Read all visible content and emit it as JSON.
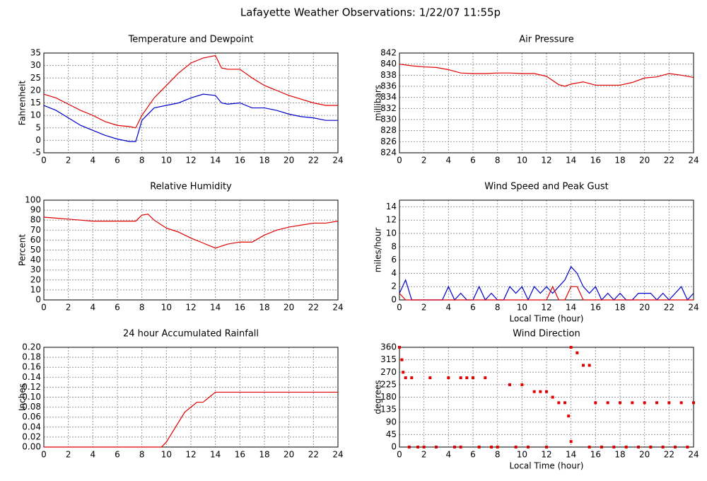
{
  "title": "Lafayette Weather Observations: 1/22/07 11:55p",
  "chart_data": [
    {
      "type": "line",
      "title": "Temperature and Dewpoint",
      "y_label": "Fahrenheit",
      "grid": true,
      "xlim": [
        0,
        24
      ],
      "xticks": [
        0,
        2,
        4,
        6,
        8,
        10,
        12,
        14,
        16,
        18,
        20,
        22,
        24
      ],
      "ylim": [
        -5,
        35
      ],
      "yticks": [
        -5,
        0,
        5,
        10,
        15,
        20,
        25,
        30,
        35
      ],
      "x": [
        0,
        1,
        2,
        3,
        4,
        5,
        6,
        7,
        7.5,
        8,
        9,
        10,
        11,
        12,
        13,
        14,
        14.5,
        15,
        16,
        17,
        18,
        19,
        20,
        21,
        22,
        23,
        24
      ],
      "series": [
        {
          "color": "#e00000",
          "values": [
            18.5,
            17,
            14.5,
            12,
            10,
            7.5,
            6,
            5.5,
            5,
            10,
            17,
            22,
            27,
            31,
            33,
            34,
            29,
            28.5,
            28.5,
            25,
            22,
            20,
            18,
            16.5,
            15,
            14,
            14
          ]
        },
        {
          "color": "#0000c8",
          "values": [
            14,
            12,
            9,
            6,
            4,
            2,
            0.5,
            -0.5,
            -0.5,
            8,
            13,
            14,
            15,
            17,
            18.5,
            18,
            15,
            14.5,
            15,
            13,
            13,
            12,
            10.5,
            9.5,
            9,
            8,
            8
          ]
        }
      ]
    },
    {
      "type": "line",
      "title": "Air Pressure",
      "y_label": "millibars",
      "grid": true,
      "xlim": [
        0,
        24
      ],
      "xticks": [
        0,
        2,
        4,
        6,
        8,
        10,
        12,
        14,
        16,
        18,
        20,
        22,
        24
      ],
      "ylim": [
        824,
        842
      ],
      "yticks": [
        824,
        826,
        828,
        830,
        832,
        834,
        836,
        838,
        840,
        842
      ],
      "x": [
        0,
        1,
        2,
        3,
        4,
        5,
        6,
        7,
        8,
        9,
        10,
        11,
        12,
        13,
        13.5,
        14,
        15,
        16,
        17,
        18,
        19,
        20,
        21,
        22,
        23,
        24
      ],
      "series": [
        {
          "color": "#e00000",
          "values": [
            840,
            839.7,
            839.5,
            839.4,
            839,
            838.4,
            838.3,
            838.3,
            838.4,
            838.4,
            838.3,
            838.3,
            837.8,
            836.3,
            836,
            836.4,
            836.8,
            836.2,
            836.2,
            836.2,
            836.7,
            837.5,
            837.7,
            838.3,
            838,
            837.6
          ]
        }
      ]
    },
    {
      "type": "line",
      "title": "Relative Humidity",
      "y_label": "Percent",
      "grid": true,
      "xlim": [
        0,
        24
      ],
      "xticks": [
        0,
        2,
        4,
        6,
        8,
        10,
        12,
        14,
        16,
        18,
        20,
        22,
        24
      ],
      "ylim": [
        0,
        100
      ],
      "yticks": [
        0,
        10,
        20,
        30,
        40,
        50,
        60,
        70,
        80,
        90,
        100
      ],
      "x": [
        0,
        1,
        2,
        3,
        4,
        5,
        6,
        7,
        7.5,
        8,
        8.5,
        9,
        10,
        11,
        12,
        13,
        14,
        15,
        16,
        17,
        18,
        19,
        20,
        21,
        22,
        23,
        24
      ],
      "series": [
        {
          "color": "#e00000",
          "values": [
            83,
            82,
            81,
            80,
            79,
            79,
            79,
            79,
            79,
            85,
            86,
            80,
            72,
            68,
            62,
            57,
            52,
            56,
            58,
            58,
            65,
            70,
            73,
            75,
            77,
            77,
            79
          ]
        }
      ]
    },
    {
      "type": "line",
      "title": "Wind Speed and Peak Gust",
      "y_label": "miles/hour",
      "x_label": "Local Time (hour)",
      "grid": true,
      "xlim": [
        0,
        24
      ],
      "xticks": [
        0,
        2,
        4,
        6,
        8,
        10,
        12,
        14,
        16,
        18,
        20,
        22,
        24
      ],
      "ylim": [
        0,
        15
      ],
      "yticks": [
        0,
        2,
        4,
        6,
        8,
        10,
        12,
        14
      ],
      "x": [
        0,
        0.5,
        1,
        1.5,
        2,
        2.5,
        3,
        3.5,
        4,
        4.5,
        5,
        5.5,
        6,
        6.5,
        7,
        7.5,
        8,
        8.5,
        9,
        9.5,
        10,
        10.5,
        11,
        11.5,
        12,
        12.5,
        13,
        13.5,
        14,
        14.5,
        15,
        15.5,
        16,
        16.5,
        17,
        17.5,
        18,
        18.5,
        19,
        19.5,
        20,
        20.5,
        21,
        21.5,
        22,
        22.5,
        23,
        23.5,
        24
      ],
      "series": [
        {
          "color": "#0000c8",
          "values": [
            1,
            3,
            0,
            0,
            0,
            0,
            0,
            0,
            2,
            0,
            1,
            0,
            0,
            2,
            0,
            1,
            0,
            0,
            2,
            1,
            2,
            0,
            2,
            1,
            2,
            1,
            2,
            3,
            5,
            4,
            2,
            1,
            2,
            0,
            1,
            0,
            1,
            0,
            0,
            1,
            1,
            1,
            0,
            1,
            0,
            1,
            2,
            0,
            1
          ]
        },
        {
          "color": "#e00000",
          "values": [
            1,
            0,
            0,
            0,
            0,
            0,
            0,
            0,
            0,
            0,
            0,
            0,
            0,
            0,
            0,
            0,
            0,
            0,
            0,
            0,
            0,
            0,
            0,
            0,
            0,
            2,
            0,
            0,
            2,
            2,
            0,
            0,
            0,
            0,
            0,
            0,
            0,
            0,
            0,
            0,
            0,
            0,
            0,
            0,
            0,
            0,
            0,
            0,
            0
          ]
        }
      ]
    },
    {
      "type": "line",
      "title": "24 hour Accumulated Rainfall",
      "y_label": "Inches",
      "grid": true,
      "xlim": [
        0,
        24
      ],
      "xticks": [
        0,
        2,
        4,
        6,
        8,
        10,
        12,
        14,
        16,
        18,
        20,
        22,
        24
      ],
      "ylim": [
        0,
        0.2
      ],
      "yticks": [
        {
          "value": 0,
          "label": "0.00"
        },
        {
          "value": 0.02,
          "label": "0.02"
        },
        {
          "value": 0.04,
          "label": "0.04"
        },
        {
          "value": 0.06,
          "label": "0.06"
        },
        {
          "value": 0.08,
          "label": "0.08"
        },
        {
          "value": 0.1,
          "label": "0.10"
        },
        {
          "value": 0.12,
          "label": "0.12"
        },
        {
          "value": 0.14,
          "label": "0.14"
        },
        {
          "value": 0.16,
          "label": "0.16"
        },
        {
          "value": 0.18,
          "label": "0.18"
        },
        {
          "value": 0.2,
          "label": "0.20"
        }
      ],
      "x": [
        0,
        9.6,
        10,
        10.5,
        11,
        11.5,
        12,
        12.5,
        13,
        13.5,
        14,
        24
      ],
      "series": [
        {
          "color": "#e00000",
          "values": [
            0,
            0,
            0.01,
            0.03,
            0.05,
            0.07,
            0.08,
            0.09,
            0.09,
            0.1,
            0.11,
            0.11
          ]
        }
      ]
    },
    {
      "type": "scatter",
      "title": "Wind Direction",
      "y_label": "degrees",
      "x_label": "Local Time (hour)",
      "grid": true,
      "xlim": [
        0,
        24
      ],
      "xticks": [
        0,
        2,
        4,
        6,
        8,
        10,
        12,
        14,
        16,
        18,
        20,
        22,
        24
      ],
      "ylim": [
        0,
        360
      ],
      "yticks": [
        0,
        45,
        90,
        135,
        180,
        225,
        270,
        315,
        360
      ],
      "x": [
        0,
        0.2,
        0.3,
        0.5,
        1,
        0.8,
        1.5,
        2,
        2.5,
        3,
        4,
        4.5,
        5,
        5,
        5.5,
        6,
        6.5,
        7,
        7.5,
        8,
        9,
        9.5,
        10,
        10.5,
        11,
        11.5,
        12,
        12,
        12.5,
        13,
        13.5,
        13.8,
        14,
        14,
        14.5,
        15,
        15.5,
        15.5,
        16,
        16.5,
        17,
        17.5,
        18,
        18.5,
        19,
        19.5,
        20,
        20.5,
        21,
        21.5,
        22,
        22.5,
        23,
        23.5,
        24
      ],
      "series": [
        {
          "color": "#e00000",
          "values": [
            360,
            315,
            270,
            250,
            250,
            0,
            0,
            0,
            250,
            0,
            250,
            0,
            0,
            250,
            250,
            250,
            0,
            250,
            0,
            0,
            225,
            0,
            225,
            0,
            200,
            200,
            200,
            0,
            180,
            160,
            160,
            112,
            20,
            360,
            340,
            295,
            295,
            0,
            160,
            0,
            160,
            0,
            160,
            0,
            160,
            0,
            160,
            0,
            160,
            0,
            160,
            0,
            160,
            0,
            160
          ]
        }
      ]
    }
  ]
}
